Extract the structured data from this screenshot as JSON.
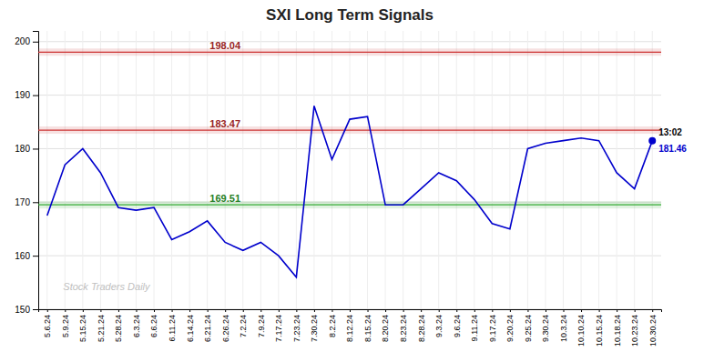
{
  "chart_data": {
    "type": "line",
    "title": "SXI Long Term Signals",
    "categories": [
      "5.6.24",
      "5.9.24",
      "5.15.24",
      "5.21.24",
      "5.28.24",
      "6.3.24",
      "6.6.24",
      "6.11.24",
      "6.14.24",
      "6.21.24",
      "6.26.24",
      "7.2.24",
      "7.9.24",
      "7.17.24",
      "7.23.24",
      "7.30.24",
      "8.2.24",
      "8.12.24",
      "8.15.24",
      "8.20.24",
      "8.23.24",
      "8.28.24",
      "9.3.24",
      "9.6.24",
      "9.11.24",
      "9.17.24",
      "9.20.24",
      "9.25.24",
      "9.30.24",
      "10.3.24",
      "10.10.24",
      "10.15.24",
      "10.18.24",
      "10.23.24",
      "10.30.24"
    ],
    "values": [
      167.5,
      177.0,
      180.0,
      175.5,
      169.0,
      168.5,
      169.0,
      163.0,
      164.5,
      166.5,
      162.5,
      161.0,
      162.5,
      160.0,
      156.0,
      188.0,
      178.0,
      185.5,
      186.0,
      169.5,
      169.51,
      172.5,
      175.5,
      174.0,
      170.5,
      166.0,
      165.0,
      180.0,
      181.0,
      181.5,
      182.0,
      181.5,
      175.5,
      172.5,
      181.46
    ],
    "color": "#0000cc",
    "ylim": [
      150,
      202
    ],
    "yticks": [
      150,
      160,
      170,
      180,
      190,
      200
    ],
    "grid": true,
    "hlines": [
      {
        "value": 198.04,
        "color": "#cc3333"
      },
      {
        "value": 183.47,
        "color": "#cc3333"
      },
      {
        "value": 169.51,
        "color": "#33aa33"
      }
    ],
    "annotations": [
      "13:02"
    ],
    "watermark": "Stock Traders Daily"
  }
}
